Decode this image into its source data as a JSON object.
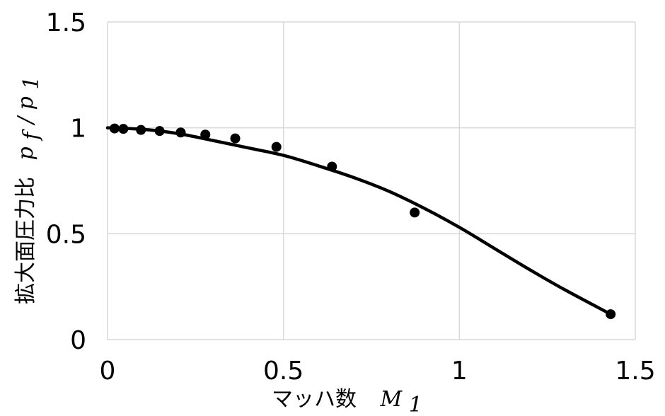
{
  "chart_data": {
    "type": "scatter",
    "xlabel": {
      "text": "マッハ数",
      "var": "M",
      "sub": "1"
    },
    "ylabel": {
      "text": "拡大面圧力比",
      "var_num": "p",
      "sub_num": "f",
      "slash": "/",
      "var_den": "p",
      "sub_den": "1"
    },
    "xlim": [
      0,
      1.5
    ],
    "ylim": [
      0,
      1.5
    ],
    "x_ticks": [
      0,
      0.5,
      1,
      1.5
    ],
    "y_ticks": [
      0,
      0.5,
      1,
      1.5
    ],
    "x_tick_labels": [
      "0",
      "0.5",
      "1",
      "1.5"
    ],
    "y_tick_labels": [
      "0",
      "0.5",
      "1",
      "1.5"
    ],
    "grid": true,
    "series": [
      {
        "kind": "points",
        "marker": "circle",
        "color": "#000000",
        "x": [
          0.02,
          0.045,
          0.095,
          0.148,
          0.208,
          0.278,
          0.363,
          0.48,
          0.638,
          0.873,
          1.43
        ],
        "y": [
          0.997,
          0.995,
          0.99,
          0.985,
          0.978,
          0.968,
          0.95,
          0.91,
          0.817,
          0.6,
          0.12
        ]
      },
      {
        "kind": "line",
        "color": "#000000",
        "x": [
          0,
          0.1,
          0.2,
          0.3,
          0.4,
          0.5,
          0.6,
          0.7,
          0.8,
          0.9,
          1.0,
          1.1,
          1.2,
          1.3,
          1.43
        ],
        "y": [
          1.0,
          0.993,
          0.973,
          0.94,
          0.905,
          0.87,
          0.82,
          0.765,
          0.7,
          0.62,
          0.53,
          0.43,
          0.33,
          0.235,
          0.12
        ]
      }
    ]
  }
}
